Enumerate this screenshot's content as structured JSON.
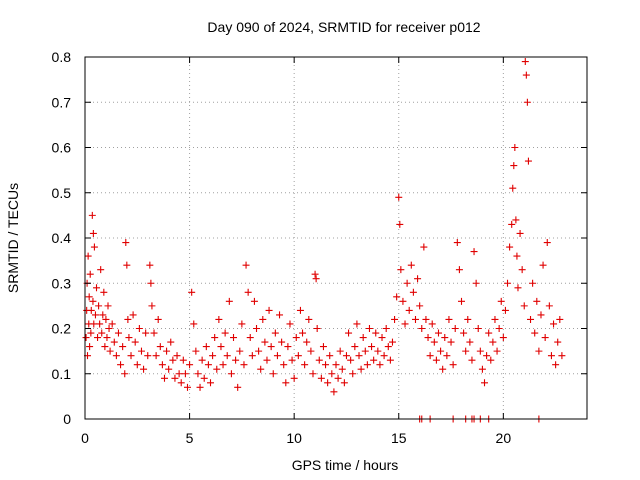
{
  "chart_data": {
    "type": "scatter",
    "title": "Day 090 of 2024, SRMTID for receiver p012",
    "xlabel": "GPS time / hours",
    "ylabel": "SRMTID / TECUs",
    "xlim": [
      0,
      24
    ],
    "ylim": [
      0,
      0.8
    ],
    "x_ticks": [
      0,
      5,
      10,
      15,
      20
    ],
    "x_tick_labels": [
      "0",
      "5",
      "10",
      "15",
      "20"
    ],
    "y_ticks": [
      0,
      0.1,
      0.2,
      0.3,
      0.4,
      0.5,
      0.6,
      0.7,
      0.8
    ],
    "y_tick_labels": [
      "0",
      "0.1",
      "0.2",
      "0.3",
      "0.4",
      "0.5",
      "0.6",
      "0.7",
      "0.8"
    ],
    "grid": true,
    "marker": "plus",
    "color": "#e00000",
    "series": [
      {
        "name": "SRMTID",
        "points": [
          [
            0.05,
            0.18
          ],
          [
            0.08,
            0.24
          ],
          [
            0.1,
            0.3
          ],
          [
            0.12,
            0.14
          ],
          [
            0.15,
            0.36
          ],
          [
            0.18,
            0.21
          ],
          [
            0.2,
            0.27
          ],
          [
            0.22,
            0.16
          ],
          [
            0.25,
            0.32
          ],
          [
            0.28,
            0.19
          ],
          [
            0.3,
            0.24
          ],
          [
            0.35,
            0.45
          ],
          [
            0.38,
            0.26
          ],
          [
            0.4,
            0.41
          ],
          [
            0.42,
            0.21
          ],
          [
            0.45,
            0.38
          ],
          [
            0.5,
            0.23
          ],
          [
            0.55,
            0.29
          ],
          [
            0.6,
            0.18
          ],
          [
            0.65,
            0.25
          ],
          [
            0.7,
            0.21
          ],
          [
            0.75,
            0.33
          ],
          [
            0.8,
            0.19
          ],
          [
            0.85,
            0.23
          ],
          [
            0.9,
            0.28
          ],
          [
            0.95,
            0.16
          ],
          [
            1.0,
            0.22
          ],
          [
            1.05,
            0.18
          ],
          [
            1.1,
            0.25
          ],
          [
            1.15,
            0.2
          ],
          [
            1.2,
            0.15
          ],
          [
            1.3,
            0.21
          ],
          [
            1.4,
            0.17
          ],
          [
            1.5,
            0.14
          ],
          [
            1.6,
            0.19
          ],
          [
            1.7,
            0.12
          ],
          [
            1.8,
            0.16
          ],
          [
            1.9,
            0.1
          ],
          [
            1.95,
            0.39
          ],
          [
            2.0,
            0.34
          ],
          [
            2.05,
            0.22
          ],
          [
            2.1,
            0.18
          ],
          [
            2.2,
            0.14
          ],
          [
            2.3,
            0.23
          ],
          [
            2.4,
            0.17
          ],
          [
            2.5,
            0.12
          ],
          [
            2.6,
            0.2
          ],
          [
            2.7,
            0.15
          ],
          [
            2.8,
            0.11
          ],
          [
            2.9,
            0.19
          ],
          [
            3.0,
            0.14
          ],
          [
            3.1,
            0.34
          ],
          [
            3.15,
            0.3
          ],
          [
            3.2,
            0.25
          ],
          [
            3.3,
            0.19
          ],
          [
            3.4,
            0.14
          ],
          [
            3.5,
            0.22
          ],
          [
            3.6,
            0.16
          ],
          [
            3.7,
            0.12
          ],
          [
            3.8,
            0.09
          ],
          [
            3.9,
            0.15
          ],
          [
            4.0,
            0.11
          ],
          [
            4.1,
            0.17
          ],
          [
            4.2,
            0.13
          ],
          [
            4.3,
            0.09
          ],
          [
            4.4,
            0.14
          ],
          [
            4.5,
            0.1
          ],
          [
            4.6,
            0.08
          ],
          [
            4.7,
            0.13
          ],
          [
            4.8,
            0.1
          ],
          [
            4.9,
            0.07
          ],
          [
            5.0,
            0.12
          ],
          [
            5.1,
            0.28
          ],
          [
            5.2,
            0.21
          ],
          [
            5.3,
            0.15
          ],
          [
            5.4,
            0.1
          ],
          [
            5.5,
            0.07
          ],
          [
            5.6,
            0.13
          ],
          [
            5.7,
            0.09
          ],
          [
            5.8,
            0.16
          ],
          [
            5.9,
            0.12
          ],
          [
            6.0,
            0.08
          ],
          [
            6.1,
            0.14
          ],
          [
            6.2,
            0.18
          ],
          [
            6.3,
            0.11
          ],
          [
            6.4,
            0.22
          ],
          [
            6.5,
            0.16
          ],
          [
            6.6,
            0.12
          ],
          [
            6.7,
            0.19
          ],
          [
            6.8,
            0.14
          ],
          [
            6.9,
            0.26
          ],
          [
            7.0,
            0.1
          ],
          [
            7.1,
            0.18
          ],
          [
            7.2,
            0.13
          ],
          [
            7.3,
            0.07
          ],
          [
            7.4,
            0.15
          ],
          [
            7.5,
            0.21
          ],
          [
            7.6,
            0.12
          ],
          [
            7.7,
            0.34
          ],
          [
            7.8,
            0.28
          ],
          [
            7.9,
            0.18
          ],
          [
            8.0,
            0.14
          ],
          [
            8.1,
            0.26
          ],
          [
            8.2,
            0.2
          ],
          [
            8.3,
            0.15
          ],
          [
            8.4,
            0.11
          ],
          [
            8.5,
            0.22
          ],
          [
            8.6,
            0.17
          ],
          [
            8.7,
            0.13
          ],
          [
            8.8,
            0.24
          ],
          [
            8.9,
            0.16
          ],
          [
            9.0,
            0.1
          ],
          [
            9.1,
            0.19
          ],
          [
            9.2,
            0.14
          ],
          [
            9.3,
            0.23
          ],
          [
            9.4,
            0.17
          ],
          [
            9.5,
            0.12
          ],
          [
            9.6,
            0.08
          ],
          [
            9.7,
            0.16
          ],
          [
            9.8,
            0.21
          ],
          [
            9.9,
            0.13
          ],
          [
            10.0,
            0.09
          ],
          [
            10.1,
            0.18
          ],
          [
            10.2,
            0.14
          ],
          [
            10.3,
            0.24
          ],
          [
            10.4,
            0.19
          ],
          [
            10.5,
            0.12
          ],
          [
            10.6,
            0.17
          ],
          [
            10.7,
            0.22
          ],
          [
            10.8,
            0.15
          ],
          [
            10.9,
            0.1
          ],
          [
            11.0,
            0.32
          ],
          [
            11.05,
            0.31
          ],
          [
            11.1,
            0.2
          ],
          [
            11.2,
            0.13
          ],
          [
            11.3,
            0.09
          ],
          [
            11.4,
            0.16
          ],
          [
            11.5,
            0.12
          ],
          [
            11.6,
            0.08
          ],
          [
            11.7,
            0.14
          ],
          [
            11.8,
            0.1
          ],
          [
            11.9,
            0.06
          ],
          [
            12.0,
            0.12
          ],
          [
            12.1,
            0.09
          ],
          [
            12.2,
            0.15
          ],
          [
            12.3,
            0.11
          ],
          [
            12.4,
            0.08
          ],
          [
            12.5,
            0.14
          ],
          [
            12.6,
            0.19
          ],
          [
            12.7,
            0.13
          ],
          [
            12.8,
            0.1
          ],
          [
            12.9,
            0.16
          ],
          [
            13.0,
            0.21
          ],
          [
            13.1,
            0.14
          ],
          [
            13.2,
            0.11
          ],
          [
            13.3,
            0.18
          ],
          [
            13.4,
            0.15
          ],
          [
            13.5,
            0.12
          ],
          [
            13.6,
            0.2
          ],
          [
            13.7,
            0.16
          ],
          [
            13.8,
            0.13
          ],
          [
            13.9,
            0.19
          ],
          [
            14.0,
            0.15
          ],
          [
            14.1,
            0.12
          ],
          [
            14.2,
            0.18
          ],
          [
            14.3,
            0.14
          ],
          [
            14.4,
            0.2
          ],
          [
            14.5,
            0.16
          ],
          [
            14.6,
            0.13
          ],
          [
            14.7,
            0.17
          ],
          [
            14.8,
            0.22
          ],
          [
            14.9,
            0.27
          ],
          [
            15.0,
            0.49
          ],
          [
            15.05,
            0.43
          ],
          [
            15.1,
            0.33
          ],
          [
            15.2,
            0.26
          ],
          [
            15.3,
            0.21
          ],
          [
            15.4,
            0.3
          ],
          [
            15.5,
            0.24
          ],
          [
            15.6,
            0.34
          ],
          [
            15.7,
            0.28
          ],
          [
            15.8,
            0.22
          ],
          [
            15.9,
            0.31
          ],
          [
            16.0,
            0.25
          ],
          [
            16.1,
            0.2
          ],
          [
            16.2,
            0.38
          ],
          [
            16.3,
            0.22
          ],
          [
            16.4,
            0.18
          ],
          [
            16.5,
            0.14
          ],
          [
            16.6,
            0.21
          ],
          [
            16.7,
            0.17
          ],
          [
            16.8,
            0.13
          ],
          [
            16.9,
            0.19
          ],
          [
            17.0,
            0.15
          ],
          [
            17.1,
            0.11
          ],
          [
            17.2,
            0.18
          ],
          [
            17.3,
            0.14
          ],
          [
            17.4,
            0.22
          ],
          [
            17.5,
            0.17
          ],
          [
            17.6,
            0.12
          ],
          [
            17.7,
            0.2
          ],
          [
            17.8,
            0.39
          ],
          [
            17.9,
            0.33
          ],
          [
            18.0,
            0.26
          ],
          [
            18.1,
            0.19
          ],
          [
            18.2,
            0.15
          ],
          [
            18.3,
            0.22
          ],
          [
            18.4,
            0.17
          ],
          [
            18.5,
            0.13
          ],
          [
            18.6,
            0.37
          ],
          [
            18.7,
            0.3
          ],
          [
            18.8,
            0.2
          ],
          [
            18.9,
            0.15
          ],
          [
            19.0,
            0.11
          ],
          [
            19.1,
            0.08
          ],
          [
            19.2,
            0.14
          ],
          [
            19.3,
            0.19
          ],
          [
            19.4,
            0.13
          ],
          [
            19.5,
            0.17
          ],
          [
            19.6,
            0.22
          ],
          [
            19.7,
            0.15
          ],
          [
            19.8,
            0.2
          ],
          [
            19.9,
            0.26
          ],
          [
            20.0,
            0.18
          ],
          [
            20.1,
            0.24
          ],
          [
            20.2,
            0.3
          ],
          [
            20.3,
            0.38
          ],
          [
            20.4,
            0.43
          ],
          [
            20.45,
            0.51
          ],
          [
            20.5,
            0.56
          ],
          [
            20.55,
            0.6
          ],
          [
            20.6,
            0.44
          ],
          [
            20.65,
            0.36
          ],
          [
            20.7,
            0.29
          ],
          [
            20.8,
            0.41
          ],
          [
            20.9,
            0.33
          ],
          [
            21.0,
            0.25
          ],
          [
            21.05,
            0.79
          ],
          [
            21.1,
            0.76
          ],
          [
            21.15,
            0.7
          ],
          [
            21.2,
            0.57
          ],
          [
            21.3,
            0.22
          ],
          [
            21.4,
            0.3
          ],
          [
            21.5,
            0.19
          ],
          [
            21.6,
            0.26
          ],
          [
            21.7,
            0.15
          ],
          [
            21.8,
            0.23
          ],
          [
            21.9,
            0.34
          ],
          [
            22.0,
            0.18
          ],
          [
            22.1,
            0.39
          ],
          [
            22.2,
            0.25
          ],
          [
            22.3,
            0.14
          ],
          [
            22.4,
            0.21
          ],
          [
            22.5,
            0.12
          ],
          [
            22.6,
            0.17
          ],
          [
            22.7,
            0.22
          ],
          [
            22.8,
            0.14
          ],
          [
            16.0,
            0.0
          ],
          [
            16.1,
            0.0
          ],
          [
            16.5,
            0.0
          ],
          [
            17.6,
            0.0
          ],
          [
            18.2,
            0.0
          ],
          [
            18.5,
            0.0
          ],
          [
            18.6,
            0.0
          ],
          [
            18.9,
            0.0
          ],
          [
            19.3,
            0.0
          ],
          [
            21.7,
            0.0
          ]
        ]
      }
    ]
  }
}
